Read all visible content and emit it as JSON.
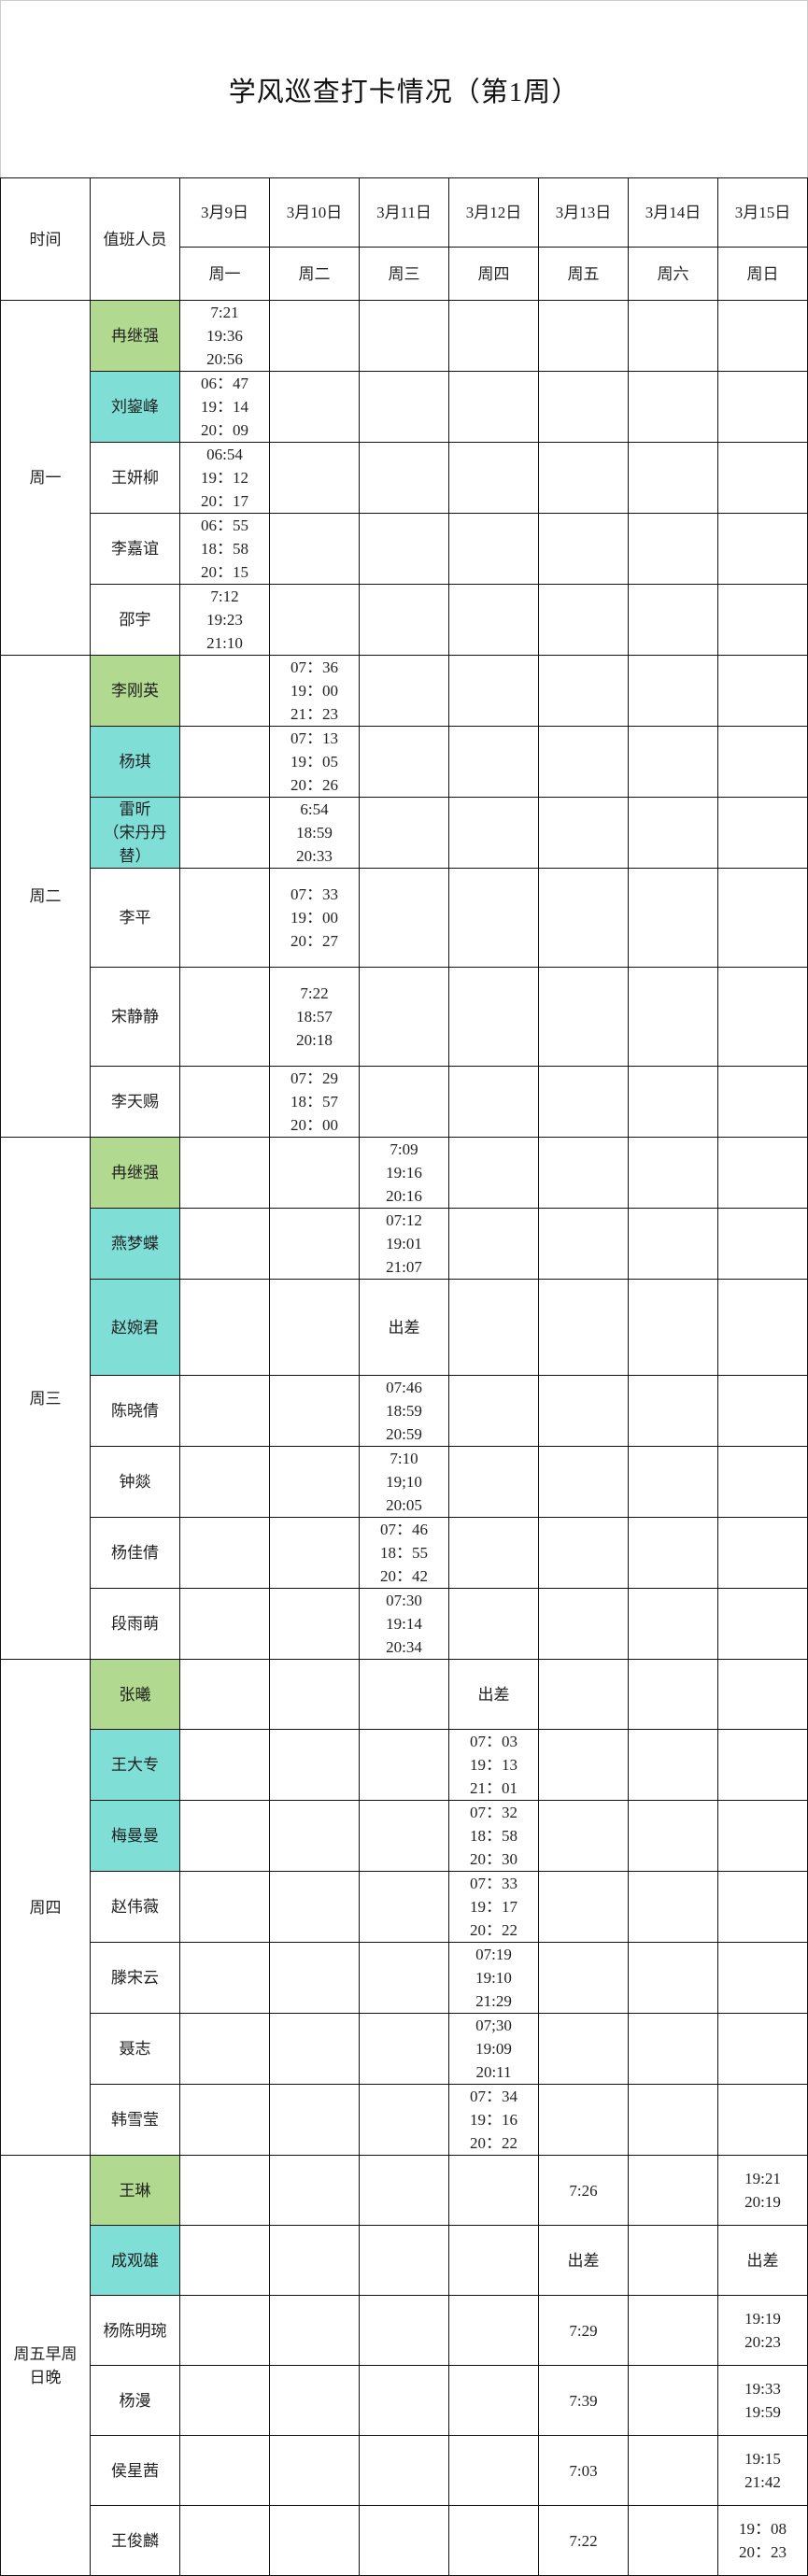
{
  "title": "学风巡查打卡情况（第1周）",
  "header": {
    "time_label": "时间",
    "staff_label": "值班人员",
    "dates": [
      "3月9日",
      "3月10日",
      "3月11日",
      "3月12日",
      "3月13日",
      "3月14日",
      "3月15日"
    ],
    "weekdays": [
      "周一",
      "周二",
      "周三",
      "周四",
      "周五",
      "周六",
      "周日"
    ]
  },
  "colors": {
    "green": "#b1d98f",
    "cyan": "#7fdfd7"
  },
  "groups": [
    {
      "label": "周一",
      "rows": [
        {
          "name": "冉继强",
          "color": "green",
          "cells": [
            "7:21\n19:36\n20:56",
            "",
            "",
            "",
            "",
            "",
            ""
          ]
        },
        {
          "name": "刘鋆峰",
          "color": "cyan",
          "cells": [
            "06：47\n19：14\n20：09",
            "",
            "",
            "",
            "",
            "",
            ""
          ]
        },
        {
          "name": "王妍柳",
          "color": "",
          "cells": [
            "06:54\n19：12\n20：17",
            "",
            "",
            "",
            "",
            "",
            ""
          ]
        },
        {
          "name": "李嘉谊",
          "color": "",
          "cells": [
            "06：55\n18：58\n20：15",
            "",
            "",
            "",
            "",
            "",
            ""
          ]
        },
        {
          "name": "邵宇",
          "color": "",
          "cells": [
            "7:12\n19:23\n21:10",
            "",
            "",
            "",
            "",
            "",
            ""
          ]
        }
      ]
    },
    {
      "label": "周二",
      "rows": [
        {
          "name": "李刚英",
          "color": "green",
          "cells": [
            "",
            "07：36\n19：00\n21：23",
            "",
            "",
            "",
            "",
            ""
          ]
        },
        {
          "name": "杨琪",
          "color": "cyan",
          "cells": [
            "",
            "07：13\n19：05\n20：26",
            "",
            "",
            "",
            "",
            ""
          ]
        },
        {
          "name": "雷昕\n（宋丹丹\n替）",
          "color": "cyan",
          "cells": [
            "",
            "6:54\n18:59\n20:33",
            "",
            "",
            "",
            "",
            ""
          ]
        },
        {
          "name": "李平",
          "color": "",
          "cells": [
            "",
            "07：33\n19：00\n20：27",
            "",
            "",
            "",
            "",
            ""
          ]
        },
        {
          "name": "宋静静",
          "color": "",
          "cells": [
            "",
            "7:22\n18:57\n20:18",
            "",
            "",
            "",
            "",
            ""
          ]
        },
        {
          "name": "李天赐",
          "color": "",
          "cells": [
            "",
            "07：29\n18：57\n20：00",
            "",
            "",
            "",
            "",
            ""
          ]
        }
      ]
    },
    {
      "label": "周三",
      "rows": [
        {
          "name": "冉继强",
          "color": "green",
          "cells": [
            "",
            "",
            "7:09\n19:16\n20:16",
            "",
            "",
            "",
            ""
          ]
        },
        {
          "name": "燕梦蝶",
          "color": "cyan",
          "cells": [
            "",
            "",
            "07:12\n19:01\n21:07",
            "",
            "",
            "",
            ""
          ]
        },
        {
          "name": "赵婉君",
          "color": "cyan",
          "cells": [
            "",
            "",
            "出差",
            "",
            "",
            "",
            ""
          ]
        },
        {
          "name": "陈晓倩",
          "color": "",
          "cells": [
            "",
            "",
            "07:46\n18:59\n20:59",
            "",
            "",
            "",
            ""
          ]
        },
        {
          "name": "钟燚",
          "color": "",
          "cells": [
            "",
            "",
            "7:10\n19;10\n20:05",
            "",
            "",
            "",
            ""
          ]
        },
        {
          "name": "杨佳倩",
          "color": "",
          "cells": [
            "",
            "",
            "07：46\n18：55\n20：42",
            "",
            "",
            "",
            ""
          ]
        },
        {
          "name": "段雨萌",
          "color": "",
          "cells": [
            "",
            "",
            "07:30\n19:14\n20:34",
            "",
            "",
            "",
            ""
          ]
        }
      ]
    },
    {
      "label": "周四",
      "rows": [
        {
          "name": "张曦",
          "color": "green",
          "cells": [
            "",
            "",
            "",
            "出差",
            "",
            "",
            ""
          ]
        },
        {
          "name": "王大专",
          "color": "cyan",
          "cells": [
            "",
            "",
            "",
            "07：03\n19：13\n21：01",
            "",
            "",
            ""
          ]
        },
        {
          "name": "梅曼曼",
          "color": "cyan",
          "cells": [
            "",
            "",
            "",
            "07：32\n18：58\n20：30",
            "",
            "",
            ""
          ]
        },
        {
          "name": "赵伟薇",
          "color": "",
          "cells": [
            "",
            "",
            "",
            "07：33\n19：17\n20：22",
            "",
            "",
            ""
          ]
        },
        {
          "name": "滕宋云",
          "color": "",
          "cells": [
            "",
            "",
            "",
            "07:19\n19:10\n21:29",
            "",
            "",
            ""
          ]
        },
        {
          "name": "聂志",
          "color": "",
          "cells": [
            "",
            "",
            "",
            "07;30\n19:09\n20:11",
            "",
            "",
            ""
          ]
        },
        {
          "name": "韩雪莹",
          "color": "",
          "cells": [
            "",
            "",
            "",
            "07：34\n19：16\n20：22",
            "",
            "",
            ""
          ]
        }
      ]
    },
    {
      "label": "周五早周\n日晚",
      "rows": [
        {
          "name": "王琳",
          "color": "green",
          "cells": [
            "",
            "",
            "",
            "",
            "7:26",
            "",
            "19:21\n20:19"
          ]
        },
        {
          "name": "成观雄",
          "color": "cyan",
          "cells": [
            "",
            "",
            "",
            "",
            "出差",
            "",
            "出差"
          ]
        },
        {
          "name": "杨陈明琬",
          "color": "",
          "cells": [
            "",
            "",
            "",
            "",
            "7:29",
            "",
            "19:19\n20:23"
          ]
        },
        {
          "name": "杨漫",
          "color": "",
          "cells": [
            "",
            "",
            "",
            "",
            "7:39",
            "",
            "19:33\n19:59"
          ]
        },
        {
          "name": "侯星茜",
          "color": "",
          "cells": [
            "",
            "",
            "",
            "",
            "7:03",
            "",
            "19:15\n21:42"
          ]
        },
        {
          "name": "王俊麟",
          "color": "",
          "cells": [
            "",
            "",
            "",
            "",
            "7:22",
            "",
            "19：08\n20：23"
          ]
        }
      ]
    }
  ]
}
